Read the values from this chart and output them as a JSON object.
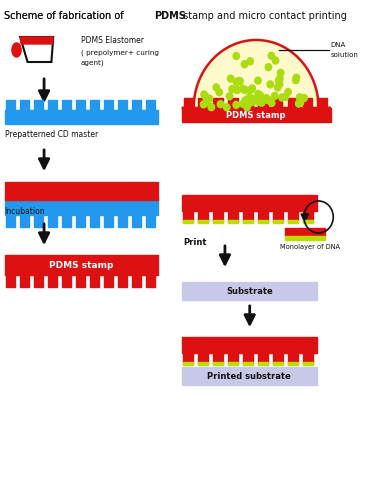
{
  "red": "#dd1111",
  "blue": "#2299ee",
  "yellow_green": "#bbdd00",
  "light_yellow": "#fffacc",
  "light_purple": "#c8c8e8",
  "black": "#111111",
  "white": "#ffffff",
  "n_teeth_cd": 11,
  "n_teeth_stamp": 10,
  "n_teeth_print": 9,
  "labels": {
    "title1": "Scheme of fabrication of ",
    "title2": "PDMS",
    "title3": " stamp and micro contact printing",
    "pdms_elast1": "PDMS Elastomer",
    "pdms_elast2": "( prepolymer+ curing",
    "pdms_elast3": "agent)",
    "cd_master": "Prepatterned CD master",
    "incubation": "Incubation",
    "pdms_stamp": "PDMS stamp",
    "dna_sol1": "DNA",
    "dna_sol2": "solution",
    "print_lbl": "Print",
    "monolayer": "Monolayer of DNA",
    "substrate": "Substrate",
    "printed_sub": "Printed substrate"
  }
}
